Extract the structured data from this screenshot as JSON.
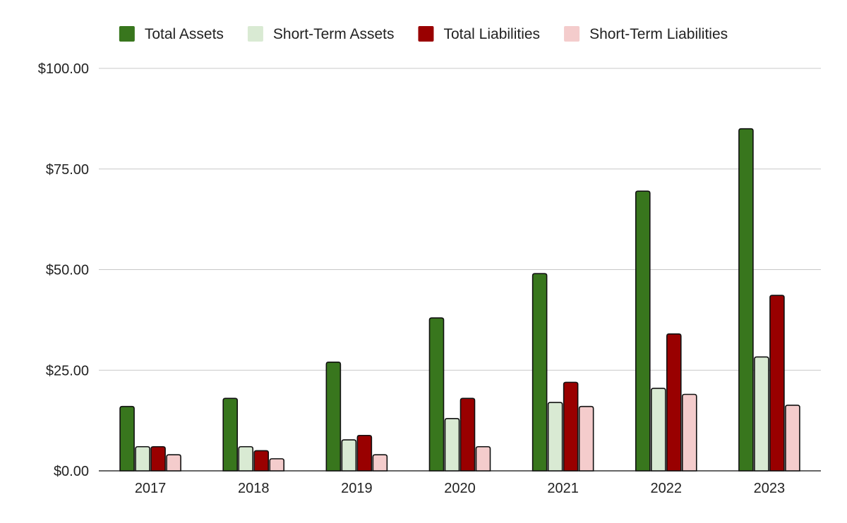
{
  "chart_data": {
    "type": "bar",
    "categories": [
      "2017",
      "2018",
      "2019",
      "2020",
      "2021",
      "2022",
      "2023"
    ],
    "series": [
      {
        "name": "Total Assets",
        "color": "#38761d",
        "values": [
          16,
          18,
          27,
          38,
          49,
          69.5,
          85
        ]
      },
      {
        "name": "Short-Term Assets",
        "color": "#d9ead3",
        "values": [
          6,
          6,
          7.7,
          13,
          17,
          20.5,
          28.3
        ]
      },
      {
        "name": "Total Liabilities",
        "color": "#990000",
        "values": [
          6,
          5,
          8.8,
          18,
          22,
          34,
          43.6
        ]
      },
      {
        "name": "Short-Term Liabilities",
        "color": "#f4cccc",
        "values": [
          4,
          3,
          4,
          6,
          16,
          19,
          16.3
        ]
      }
    ],
    "y_ticks": [
      "$0.00",
      "$25.00",
      "$50.00",
      "$75.00",
      "$100.00"
    ],
    "y_tick_values": [
      0,
      25,
      50,
      75,
      100
    ],
    "ylim": [
      0,
      100
    ],
    "title": "",
    "xlabel": "",
    "ylabel": "",
    "grid": true,
    "legend_position": "top"
  }
}
